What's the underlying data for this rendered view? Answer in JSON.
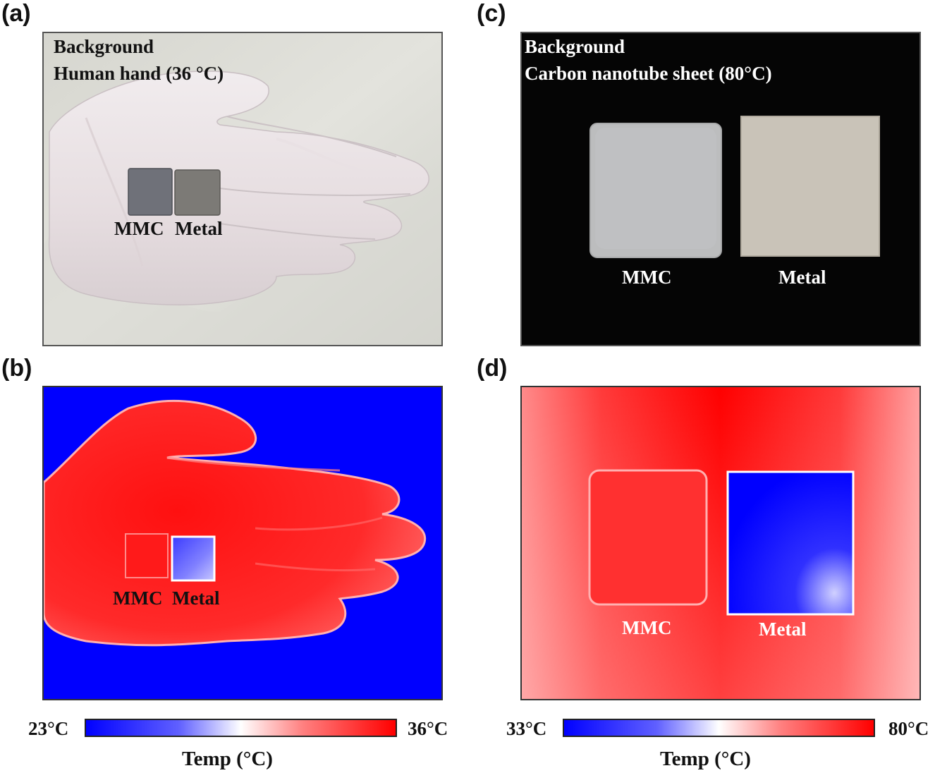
{
  "panels": {
    "a": {
      "label": "(a)",
      "background_heading": "Background",
      "background_desc": "Human hand (36 °C)",
      "sample_left": "MMC",
      "sample_right": "Metal"
    },
    "b": {
      "label": "(b)",
      "sample_left": "MMC",
      "sample_right": "Metal",
      "colorbar": {
        "min_label": "23°C",
        "max_label": "36°C",
        "title": "Temp (°C)",
        "min": 23,
        "max": 36
      }
    },
    "c": {
      "label": "(c)",
      "background_heading": "Background",
      "background_desc": "Carbon nanotube sheet (80°C)",
      "sample_left": "MMC",
      "sample_right": "Metal"
    },
    "d": {
      "label": "(d)",
      "sample_left": "MMC",
      "sample_right": "Metal",
      "colorbar": {
        "min_label": "33°C",
        "max_label": "80°C",
        "title": "Temp (°C)",
        "min": 33,
        "max": 80
      }
    }
  },
  "colors": {
    "cold": "#0000ff",
    "mid": "#ffffff",
    "hot": "#ff0000"
  }
}
